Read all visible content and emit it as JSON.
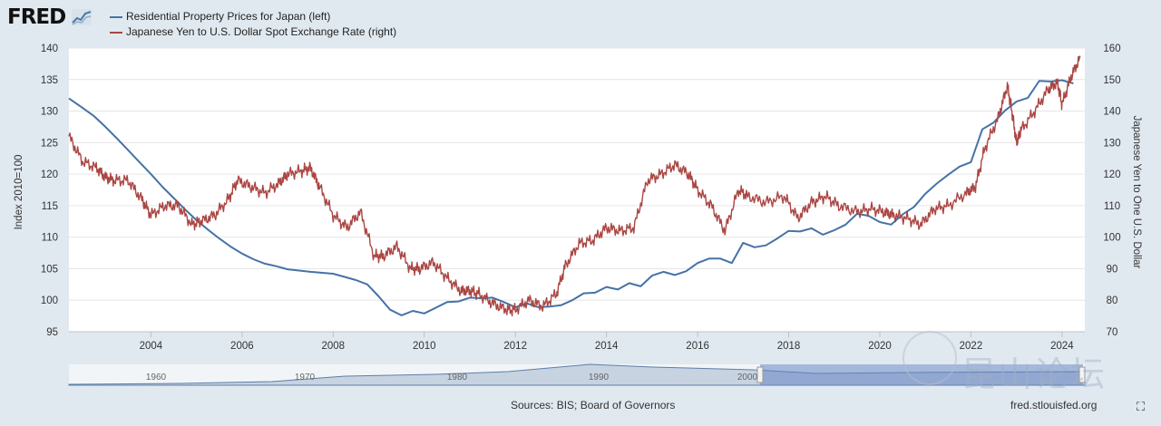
{
  "header": {
    "logo_text": "FRED",
    "legend": [
      {
        "label": "Residential Property Prices for Japan (left)",
        "color": "#4572a7"
      },
      {
        "label": "Japanese Yen to U.S. Dollar Spot Exchange Rate (right)",
        "color": "#aa4643"
      }
    ]
  },
  "chart_data": {
    "type": "line",
    "title": "",
    "xlabel": "",
    "ylabel_left": "Index 2010=100",
    "ylabel_right": "Japanese Yen to One U.S. Dollar",
    "xlim": [
      2002.2,
      2024.5
    ],
    "ylim_left": [
      95,
      140
    ],
    "ylim_right": [
      70,
      160
    ],
    "x_ticks": [
      "2004",
      "2006",
      "2008",
      "2010",
      "2012",
      "2014",
      "2016",
      "2018",
      "2020",
      "2022",
      "2024"
    ],
    "y_left_ticks": [
      "95",
      "100",
      "105",
      "110",
      "115",
      "120",
      "125",
      "130",
      "135",
      "140"
    ],
    "y_right_ticks": [
      "70",
      "80",
      "90",
      "100",
      "110",
      "120",
      "130",
      "140",
      "150",
      "160"
    ],
    "series": [
      {
        "name": "Residential Property Prices for Japan (left)",
        "axis": "left",
        "color": "#4572a7",
        "points": [
          [
            2002.2,
            132.0
          ],
          [
            2002.5,
            130.5
          ],
          [
            2002.75,
            129.2
          ],
          [
            2003.0,
            127.5
          ],
          [
            2003.25,
            125.7
          ],
          [
            2003.5,
            123.8
          ],
          [
            2003.75,
            121.9
          ],
          [
            2004.0,
            120.0
          ],
          [
            2004.25,
            118.0
          ],
          [
            2004.5,
            116.2
          ],
          [
            2004.75,
            114.4
          ],
          [
            2005.0,
            112.7
          ],
          [
            2005.25,
            111.2
          ],
          [
            2005.5,
            109.8
          ],
          [
            2005.75,
            108.5
          ],
          [
            2006.0,
            107.4
          ],
          [
            2006.25,
            106.5
          ],
          [
            2006.5,
            105.8
          ],
          [
            2006.75,
            105.4
          ],
          [
            2007.0,
            104.9
          ],
          [
            2007.5,
            104.5
          ],
          [
            2008.0,
            104.2
          ],
          [
            2008.25,
            103.7
          ],
          [
            2008.5,
            103.2
          ],
          [
            2008.75,
            102.5
          ],
          [
            2009.0,
            100.6
          ],
          [
            2009.25,
            98.5
          ],
          [
            2009.5,
            97.6
          ],
          [
            2009.75,
            98.3
          ],
          [
            2010.0,
            97.9
          ],
          [
            2010.25,
            98.8
          ],
          [
            2010.5,
            99.7
          ],
          [
            2010.75,
            99.8
          ],
          [
            2011.0,
            100.4
          ],
          [
            2011.25,
            100.3
          ],
          [
            2011.5,
            100.4
          ],
          [
            2011.75,
            99.7
          ],
          [
            2012.0,
            98.9
          ],
          [
            2012.25,
            99.5
          ],
          [
            2012.5,
            98.9
          ],
          [
            2012.75,
            99.0
          ],
          [
            2013.0,
            99.2
          ],
          [
            2013.25,
            100.0
          ],
          [
            2013.5,
            101.1
          ],
          [
            2013.75,
            101.2
          ],
          [
            2014.0,
            102.1
          ],
          [
            2014.25,
            101.7
          ],
          [
            2014.5,
            102.7
          ],
          [
            2014.75,
            102.2
          ],
          [
            2015.0,
            103.9
          ],
          [
            2015.25,
            104.5
          ],
          [
            2015.5,
            104.0
          ],
          [
            2015.75,
            104.6
          ],
          [
            2016.0,
            105.9
          ],
          [
            2016.25,
            106.6
          ],
          [
            2016.5,
            106.6
          ],
          [
            2016.75,
            105.9
          ],
          [
            2017.0,
            109.1
          ],
          [
            2017.25,
            108.4
          ],
          [
            2017.5,
            108.7
          ],
          [
            2017.75,
            109.8
          ],
          [
            2018.0,
            111.0
          ],
          [
            2018.25,
            110.9
          ],
          [
            2018.5,
            111.4
          ],
          [
            2018.75,
            110.4
          ],
          [
            2019.0,
            111.1
          ],
          [
            2019.25,
            112.0
          ],
          [
            2019.5,
            113.7
          ],
          [
            2019.75,
            113.4
          ],
          [
            2020.0,
            112.4
          ],
          [
            2020.25,
            112.0
          ],
          [
            2020.5,
            113.6
          ],
          [
            2020.75,
            114.8
          ],
          [
            2021.0,
            116.9
          ],
          [
            2021.25,
            118.5
          ],
          [
            2021.5,
            119.9
          ],
          [
            2021.75,
            121.2
          ],
          [
            2022.0,
            121.9
          ],
          [
            2022.25,
            127.1
          ],
          [
            2022.5,
            128.2
          ],
          [
            2022.75,
            130.1
          ],
          [
            2023.0,
            131.5
          ],
          [
            2023.25,
            132.1
          ],
          [
            2023.5,
            134.8
          ],
          [
            2023.75,
            134.7
          ],
          [
            2024.0,
            134.9
          ],
          [
            2024.25,
            134.4
          ]
        ]
      },
      {
        "name": "Japanese Yen to U.S. Dollar Spot Exchange Rate (right)",
        "axis": "right",
        "color": "#aa4643",
        "points": [
          [
            2002.2,
            132
          ],
          [
            2002.5,
            124
          ],
          [
            2002.8,
            122
          ],
          [
            2003.0,
            119
          ],
          [
            2003.2,
            118
          ],
          [
            2003.5,
            118
          ],
          [
            2003.8,
            112
          ],
          [
            2004.0,
            107
          ],
          [
            2004.3,
            110
          ],
          [
            2004.6,
            110
          ],
          [
            2004.9,
            104
          ],
          [
            2005.1,
            105
          ],
          [
            2005.4,
            107
          ],
          [
            2005.7,
            112
          ],
          [
            2005.9,
            118
          ],
          [
            2006.2,
            116
          ],
          [
            2006.5,
            114
          ],
          [
            2006.8,
            117
          ],
          [
            2007.0,
            120
          ],
          [
            2007.3,
            121
          ],
          [
            2007.5,
            122
          ],
          [
            2007.7,
            116
          ],
          [
            2008.0,
            107
          ],
          [
            2008.3,
            103
          ],
          [
            2008.6,
            108
          ],
          [
            2008.9,
            94
          ],
          [
            2009.1,
            94
          ],
          [
            2009.4,
            97
          ],
          [
            2009.7,
            90
          ],
          [
            2009.9,
            90
          ],
          [
            2010.2,
            92
          ],
          [
            2010.5,
            87
          ],
          [
            2010.8,
            83
          ],
          [
            2011.0,
            83
          ],
          [
            2011.2,
            82
          ],
          [
            2011.5,
            79
          ],
          [
            2011.8,
            77
          ],
          [
            2012.0,
            77
          ],
          [
            2012.3,
            80
          ],
          [
            2012.6,
            78
          ],
          [
            2012.9,
            82
          ],
          [
            2013.1,
            91
          ],
          [
            2013.4,
            98
          ],
          [
            2013.7,
            99
          ],
          [
            2014.0,
            103
          ],
          [
            2014.3,
            102
          ],
          [
            2014.6,
            103
          ],
          [
            2014.9,
            118
          ],
          [
            2015.2,
            120
          ],
          [
            2015.5,
            123
          ],
          [
            2015.8,
            120
          ],
          [
            2016.0,
            115
          ],
          [
            2016.3,
            110
          ],
          [
            2016.6,
            102
          ],
          [
            2016.9,
            115
          ],
          [
            2017.1,
            113
          ],
          [
            2017.5,
            111
          ],
          [
            2017.9,
            113
          ],
          [
            2018.2,
            106
          ],
          [
            2018.5,
            111
          ],
          [
            2018.8,
            113
          ],
          [
            2019.1,
            110
          ],
          [
            2019.5,
            108
          ],
          [
            2019.8,
            109
          ],
          [
            2020.1,
            108
          ],
          [
            2020.3,
            107
          ],
          [
            2020.6,
            106
          ],
          [
            2020.9,
            104
          ],
          [
            2021.2,
            109
          ],
          [
            2021.5,
            110
          ],
          [
            2021.9,
            114
          ],
          [
            2022.1,
            116
          ],
          [
            2022.3,
            128
          ],
          [
            2022.6,
            138
          ],
          [
            2022.8,
            148
          ],
          [
            2022.9,
            140
          ],
          [
            2023.0,
            130
          ],
          [
            2023.1,
            134
          ],
          [
            2023.4,
            140
          ],
          [
            2023.7,
            147
          ],
          [
            2023.9,
            149
          ],
          [
            2024.0,
            142
          ],
          [
            2024.2,
            151
          ],
          [
            2024.4,
            157
          ]
        ]
      }
    ],
    "navigator": {
      "labels": [
        "1960",
        "1970",
        "1980",
        "1990",
        "2000"
      ]
    }
  },
  "footer": {
    "sources": "Sources: BIS; Board of Governors",
    "url": "fred.stlouisfed.org"
  },
  "watermark_text": "昆山论坛"
}
